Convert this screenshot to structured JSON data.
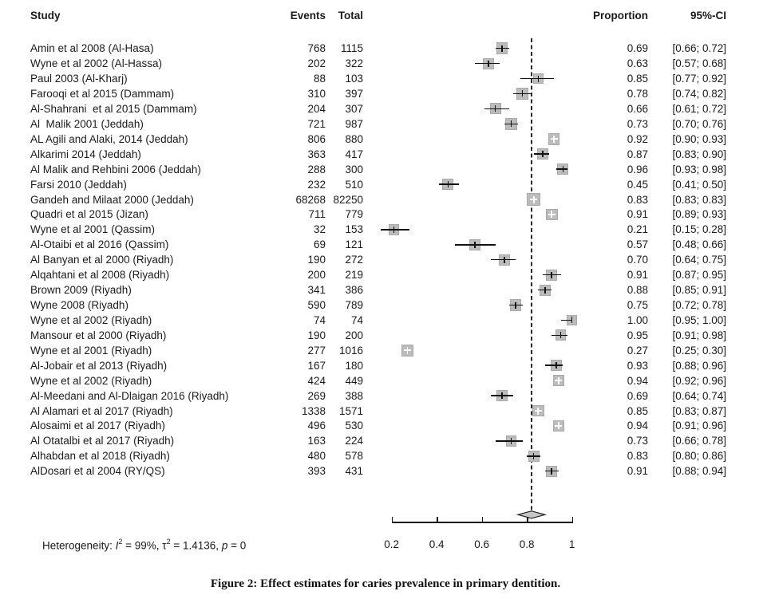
{
  "caption": "Figure 2: Effect estimates for caries prevalence in primary dentition.",
  "heterogeneity_text": {
    "prefix": "Heterogeneity: ",
    "i_symbol": "I",
    "sup1": "2",
    "segment1": " = 99%, τ",
    "sup2": "2",
    "segment2": " = 1.4136, ",
    "p_symbol": "p",
    "segment3": " = 0"
  },
  "colors": {
    "square_fill": "#bcbcbc",
    "square_border": "#a9a9a9",
    "diamond_fill": "#c6c6c6",
    "diamond_stroke": "#1b1b1b",
    "line": "#111111",
    "text": "#1b1b1b"
  },
  "chart_data": {
    "type": "scatter",
    "variant": "forest-plot",
    "columns": [
      "Study",
      "Events",
      "Total",
      "Proportion",
      "95%-CI"
    ],
    "xlim": [
      0.2,
      1.0
    ],
    "x_ticks": [
      0.2,
      0.4,
      0.6,
      0.8,
      1.0
    ],
    "x_tick_labels": [
      "0.2",
      "0.4",
      "0.6",
      "0.8",
      "1"
    ],
    "grid": false,
    "legend": "none",
    "reference_line_x": 0.82,
    "pooled": {
      "marker": "diamond",
      "proportion": 0.82,
      "ci_lo": 0.76,
      "ci_hi": 0.88
    },
    "heterogeneity": {
      "I2": "99%",
      "tau2": "1.4136",
      "p": "0"
    },
    "studies": [
      {
        "label": "Amin et al 2008 (Al-Hasa)",
        "events": "768",
        "total": "1115",
        "n": 1115,
        "proportion": 0.69,
        "prop_text": "0.69",
        "ci_lo": 0.66,
        "ci_hi": 0.72,
        "ci_text": "[0.66; 0.72]"
      },
      {
        "label": "Wyne et al 2002 (Al-Hassa)",
        "events": "202",
        "total": "322",
        "n": 322,
        "proportion": 0.63,
        "prop_text": "0.63",
        "ci_lo": 0.57,
        "ci_hi": 0.68,
        "ci_text": "[0.57; 0.68]"
      },
      {
        "label": "Paul 2003 (Al-Kharj)",
        "events": "88",
        "total": "103",
        "n": 103,
        "proportion": 0.85,
        "prop_text": "0.85",
        "ci_lo": 0.77,
        "ci_hi": 0.92,
        "ci_text": "[0.77; 0.92]"
      },
      {
        "label": "Farooqi et al 2015 (Dammam)",
        "events": "310",
        "total": "397",
        "n": 397,
        "proportion": 0.78,
        "prop_text": "0.78",
        "ci_lo": 0.74,
        "ci_hi": 0.82,
        "ci_text": "[0.74; 0.82]"
      },
      {
        "label": "Al-Shahrani  et al 2015 (Dammam)",
        "events": "204",
        "total": "307",
        "n": 307,
        "proportion": 0.66,
        "prop_text": "0.66",
        "ci_lo": 0.61,
        "ci_hi": 0.72,
        "ci_text": "[0.61; 0.72]"
      },
      {
        "label": "Al  Malik 2001 (Jeddah)",
        "events": "721",
        "total": "987",
        "n": 987,
        "proportion": 0.73,
        "prop_text": "0.73",
        "ci_lo": 0.7,
        "ci_hi": 0.76,
        "ci_text": "[0.70; 0.76]"
      },
      {
        "label": "AL Agili and Alaki, 2014 (Jeddah)",
        "events": "806",
        "total": "880",
        "n": 880,
        "proportion": 0.92,
        "prop_text": "0.92",
        "ci_lo": 0.9,
        "ci_hi": 0.93,
        "ci_text": "[0.90; 0.93]"
      },
      {
        "label": "Alkarimi 2014 (Jeddah)",
        "events": "363",
        "total": "417",
        "n": 417,
        "proportion": 0.87,
        "prop_text": "0.87",
        "ci_lo": 0.83,
        "ci_hi": 0.9,
        "ci_text": "[0.83; 0.90]"
      },
      {
        "label": "Al Malik and Rehbini 2006 (Jeddah)",
        "events": "288",
        "total": "300",
        "n": 300,
        "proportion": 0.96,
        "prop_text": "0.96",
        "ci_lo": 0.93,
        "ci_hi": 0.98,
        "ci_text": "[0.93; 0.98]"
      },
      {
        "label": "Farsi 2010 (Jeddah)",
        "events": "232",
        "total": "510",
        "n": 510,
        "proportion": 0.45,
        "prop_text": "0.45",
        "ci_lo": 0.41,
        "ci_hi": 0.5,
        "ci_text": "[0.41; 0.50]"
      },
      {
        "label": "Gandeh and Milaat 2000 (Jeddah)",
        "events": "68268",
        "total": "82250",
        "n": 82250,
        "proportion": 0.83,
        "prop_text": "0.83",
        "ci_lo": 0.83,
        "ci_hi": 0.83,
        "ci_text": "[0.83; 0.83]"
      },
      {
        "label": "Quadri et al 2015 (Jizan)",
        "events": "711",
        "total": "779",
        "n": 779,
        "proportion": 0.91,
        "prop_text": "0.91",
        "ci_lo": 0.89,
        "ci_hi": 0.93,
        "ci_text": "[0.89; 0.93]"
      },
      {
        "label": "Wyne et al 2001 (Qassim)",
        "events": "32",
        "total": "153",
        "n": 153,
        "proportion": 0.21,
        "prop_text": "0.21",
        "ci_lo": 0.15,
        "ci_hi": 0.28,
        "ci_text": "[0.15; 0.28]"
      },
      {
        "label": "Al-Otaibi et al 2016 (Qassim)",
        "events": "69",
        "total": "121",
        "n": 121,
        "proportion": 0.57,
        "prop_text": "0.57",
        "ci_lo": 0.48,
        "ci_hi": 0.66,
        "ci_text": "[0.48; 0.66]"
      },
      {
        "label": "Al Banyan et al 2000 (Riyadh)",
        "events": "190",
        "total": "272",
        "n": 272,
        "proportion": 0.7,
        "prop_text": "0.70",
        "ci_lo": 0.64,
        "ci_hi": 0.75,
        "ci_text": "[0.64; 0.75]"
      },
      {
        "label": "Alqahtani et al 2008 (Riyadh)",
        "events": "200",
        "total": "219",
        "n": 219,
        "proportion": 0.91,
        "prop_text": "0.91",
        "ci_lo": 0.87,
        "ci_hi": 0.95,
        "ci_text": "[0.87; 0.95]"
      },
      {
        "label": "Brown 2009 (Riyadh)",
        "events": "341",
        "total": "386",
        "n": 386,
        "proportion": 0.88,
        "prop_text": "0.88",
        "ci_lo": 0.85,
        "ci_hi": 0.91,
        "ci_text": "[0.85; 0.91]"
      },
      {
        "label": "Wyne 2008 (Riyadh)",
        "events": "590",
        "total": "789",
        "n": 789,
        "proportion": 0.75,
        "prop_text": "0.75",
        "ci_lo": 0.72,
        "ci_hi": 0.78,
        "ci_text": "[0.72; 0.78]"
      },
      {
        "label": "Wyne et al 2002 (Riyadh)",
        "events": "74",
        "total": "74",
        "n": 74,
        "proportion": 1.0,
        "prop_text": "1.00",
        "ci_lo": 0.95,
        "ci_hi": 1.0,
        "ci_text": "[0.95; 1.00]"
      },
      {
        "label": "Mansour et al 2000 (Riyadh)",
        "events": "190",
        "total": "200",
        "n": 200,
        "proportion": 0.95,
        "prop_text": "0.95",
        "ci_lo": 0.91,
        "ci_hi": 0.98,
        "ci_text": "[0.91; 0.98]"
      },
      {
        "label": "Wyne et al 2001 (Riyadh)",
        "events": "277",
        "total": "1016",
        "n": 1016,
        "proportion": 0.27,
        "prop_text": "0.27",
        "ci_lo": 0.25,
        "ci_hi": 0.3,
        "ci_text": "[0.25; 0.30]"
      },
      {
        "label": "Al-Jobair et al 2013 (Riyadh)",
        "events": "167",
        "total": "180",
        "n": 180,
        "proportion": 0.93,
        "prop_text": "0.93",
        "ci_lo": 0.88,
        "ci_hi": 0.96,
        "ci_text": "[0.88; 0.96]"
      },
      {
        "label": "Wyne et al 2002 (Riyadh)",
        "events": "424",
        "total": "449",
        "n": 449,
        "proportion": 0.94,
        "prop_text": "0.94",
        "ci_lo": 0.92,
        "ci_hi": 0.96,
        "ci_text": "[0.92; 0.96]"
      },
      {
        "label": "Al-Meedani and Al-Dlaigan 2016 (Riyadh)",
        "events": "269",
        "total": "388",
        "n": 388,
        "proportion": 0.69,
        "prop_text": "0.69",
        "ci_lo": 0.64,
        "ci_hi": 0.74,
        "ci_text": "[0.64; 0.74]"
      },
      {
        "label": "Al Alamari et al 2017 (Riyadh)",
        "events": "1338",
        "total": "1571",
        "n": 1571,
        "proportion": 0.85,
        "prop_text": "0.85",
        "ci_lo": 0.83,
        "ci_hi": 0.87,
        "ci_text": "[0.83; 0.87]"
      },
      {
        "label": "Alosaimi et al 2017 (Riyadh)",
        "events": "496",
        "total": "530",
        "n": 530,
        "proportion": 0.94,
        "prop_text": "0.94",
        "ci_lo": 0.91,
        "ci_hi": 0.96,
        "ci_text": "[0.91; 0.96]"
      },
      {
        "label": "Al Otatalbi et al 2017 (Riyadh)",
        "events": "163",
        "total": "224",
        "n": 224,
        "proportion": 0.73,
        "prop_text": "0.73",
        "ci_lo": 0.66,
        "ci_hi": 0.78,
        "ci_text": "[0.66; 0.78]"
      },
      {
        "label": "Alhabdan et al 2018 (Riyadh)",
        "events": "480",
        "total": "578",
        "n": 578,
        "proportion": 0.83,
        "prop_text": "0.83",
        "ci_lo": 0.8,
        "ci_hi": 0.86,
        "ci_text": "[0.80; 0.86]"
      },
      {
        "label": "AlDosari et al 2004 (RY/QS)",
        "events": "393",
        "total": "431",
        "n": 431,
        "proportion": 0.91,
        "prop_text": "0.91",
        "ci_lo": 0.88,
        "ci_hi": 0.94,
        "ci_text": "[0.88; 0.94]"
      }
    ]
  }
}
